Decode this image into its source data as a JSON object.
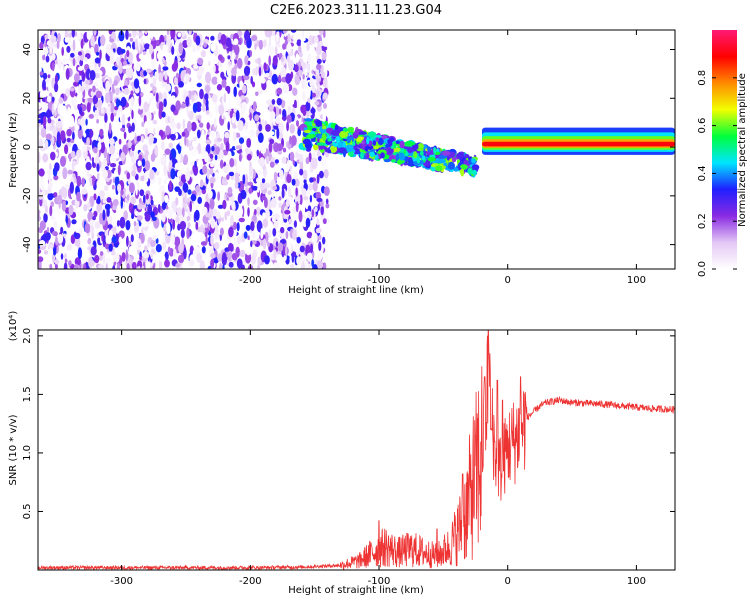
{
  "title": "C2E6.2023.311.11.23.G04",
  "chart_data": [
    {
      "type": "heatmap",
      "xlabel": "Height of straight line (km)",
      "ylabel": "Frequency (Hz)",
      "xlim": [
        -365,
        130
      ],
      "ylim": [
        -50,
        48
      ],
      "xticks": [
        -300,
        -200,
        -100,
        0,
        100
      ],
      "yticks": [
        -40,
        -20,
        0,
        20,
        40
      ],
      "grid": false,
      "colorbar": {
        "label": "Normalized spectral amplitude",
        "range": [
          0.0,
          1.0
        ],
        "ticks": [
          "0.0",
          "0.2",
          "0.4",
          "0.6",
          "0.8"
        ],
        "colormap": [
          "#ffffff",
          "#e3c8f5",
          "#8a2be2",
          "#1f1fff",
          "#00e5ff",
          "#00ff3a",
          "#f2ff00",
          "#ff8a00",
          "#ff0000",
          "#ff1a75"
        ]
      },
      "regions": [
        {
          "x_range": [
            -365,
            -140
          ],
          "f_range": [
            -50,
            48
          ],
          "amplitude": 0.1,
          "texture": "scattered noise"
        },
        {
          "x_range": [
            -160,
            -25
          ],
          "f_center_start": 6,
          "f_center_end": -8,
          "amplitude": 0.35,
          "texture": "descending streaks"
        },
        {
          "x_range": [
            -20,
            130
          ],
          "f_center": 1,
          "amplitude": 0.9,
          "texture": "narrow steady band"
        }
      ]
    },
    {
      "type": "line",
      "xlabel": "Height of straight line (km)",
      "ylabel": "SNR (10 * v/v)",
      "y_multiplier": "(x10⁴)",
      "xlim": [
        -365,
        130
      ],
      "ylim": [
        0,
        2.05
      ],
      "xticks": [
        -300,
        -200,
        -100,
        0,
        100
      ],
      "yticks": [
        0.5,
        1.0,
        1.5,
        2.0
      ],
      "grid": false,
      "series": [
        {
          "color": "#ee3333",
          "x": [
            -365,
            -300,
            -250,
            -200,
            -160,
            -130,
            -115,
            -105,
            -95,
            -85,
            -75,
            -65,
            -55,
            -45,
            -40,
            -35,
            -30,
            -25,
            -20,
            -17,
            -15,
            -12,
            -10,
            -7,
            -5,
            -3,
            0,
            5,
            10,
            15,
            20,
            25,
            30,
            40,
            50,
            70,
            90,
            110,
            130
          ],
          "y": [
            0.02,
            0.02,
            0.02,
            0.02,
            0.025,
            0.04,
            0.08,
            0.15,
            0.2,
            0.15,
            0.18,
            0.15,
            0.12,
            0.2,
            0.3,
            0.4,
            0.6,
            0.8,
            1.0,
            1.3,
            1.7,
            1.3,
            1.0,
            0.9,
            0.85,
            0.95,
            1.05,
            1.1,
            1.2,
            1.3,
            1.35,
            1.4,
            1.43,
            1.45,
            1.43,
            1.42,
            1.4,
            1.38,
            1.37
          ],
          "spikes": [
            {
              "x": -100,
              "y": 0.42
            },
            {
              "x": -55,
              "y": 0.35
            },
            {
              "x": -35,
              "y": 0.82
            },
            {
              "x": -25,
              "y": 1.15
            },
            {
              "x": -18,
              "y": 1.65
            },
            {
              "x": -15,
              "y": 2.05
            },
            {
              "x": -13,
              "y": 1.2
            },
            {
              "x": -8,
              "y": 1.62
            },
            {
              "x": -4,
              "y": 1.45
            },
            {
              "x": 10,
              "y": 1.65
            }
          ]
        }
      ]
    }
  ]
}
